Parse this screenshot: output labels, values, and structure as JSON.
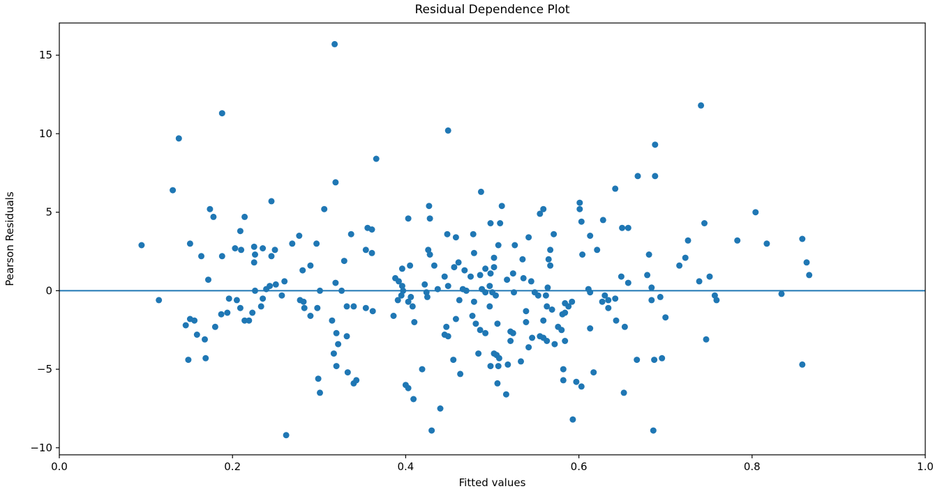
{
  "title": "Residual Dependence Plot",
  "chart_data": {
    "type": "scatter",
    "title": "Residual Dependence Plot",
    "xlabel": "Fitted values",
    "ylabel": "Pearson Residuals",
    "xlim": [
      0.0,
      1.0
    ],
    "ylim": [
      -10.45,
      17.05
    ],
    "xticks": [
      0.0,
      0.2,
      0.4,
      0.6,
      0.8,
      1.0
    ],
    "xtick_labels": [
      "0.0",
      "0.2",
      "0.4",
      "0.6",
      "0.8",
      "1.0"
    ],
    "yticks": [
      -10,
      -5,
      0,
      5,
      10,
      15
    ],
    "ytick_labels": [
      "−10",
      "−5",
      "0",
      "5",
      "10",
      "15"
    ],
    "grid": false,
    "legend": null,
    "background_color": "#ffffff",
    "spine_color": "#000000",
    "marker_color": "#1f77b4",
    "zero_line": {
      "y": 0,
      "color": "#1f77b4",
      "width": 2
    },
    "series": [
      {
        "name": "pearson-residuals",
        "points": [
          [
            0.318,
            15.7
          ],
          [
            0.188,
            11.3
          ],
          [
            0.138,
            9.7
          ],
          [
            0.131,
            6.4
          ],
          [
            0.319,
            6.9
          ],
          [
            0.245,
            5.7
          ],
          [
            0.174,
            5.2
          ],
          [
            0.178,
            4.7
          ],
          [
            0.214,
            4.7
          ],
          [
            0.209,
            3.8
          ],
          [
            0.277,
            3.5
          ],
          [
            0.306,
            5.2
          ],
          [
            0.449,
            10.2
          ],
          [
            0.366,
            8.4
          ],
          [
            0.487,
            6.3
          ],
          [
            0.642,
            6.5
          ],
          [
            0.668,
            7.3
          ],
          [
            0.427,
            5.4
          ],
          [
            0.511,
            5.4
          ],
          [
            0.555,
            4.9
          ],
          [
            0.559,
            5.2
          ],
          [
            0.601,
            5.6
          ],
          [
            0.601,
            5.2
          ],
          [
            0.403,
            4.6
          ],
          [
            0.428,
            4.6
          ],
          [
            0.498,
            4.3
          ],
          [
            0.509,
            4.3
          ],
          [
            0.603,
            4.4
          ],
          [
            0.628,
            4.5
          ],
          [
            0.356,
            4.0
          ],
          [
            0.361,
            3.9
          ],
          [
            0.337,
            3.6
          ],
          [
            0.448,
            3.6
          ],
          [
            0.458,
            3.4
          ],
          [
            0.478,
            3.6
          ],
          [
            0.542,
            3.4
          ],
          [
            0.571,
            3.6
          ],
          [
            0.613,
            3.5
          ],
          [
            0.65,
            4.0
          ],
          [
            0.657,
            4.0
          ],
          [
            0.741,
            11.8
          ],
          [
            0.688,
            9.3
          ],
          [
            0.688,
            7.3
          ],
          [
            0.804,
            5.0
          ],
          [
            0.745,
            4.3
          ],
          [
            0.726,
            3.2
          ],
          [
            0.783,
            3.2
          ],
          [
            0.858,
            3.3
          ],
          [
            0.095,
            2.9
          ],
          [
            0.151,
            3.0
          ],
          [
            0.164,
            2.2
          ],
          [
            0.188,
            2.2
          ],
          [
            0.203,
            2.7
          ],
          [
            0.21,
            2.6
          ],
          [
            0.225,
            2.8
          ],
          [
            0.226,
            2.3
          ],
          [
            0.235,
            2.7
          ],
          [
            0.245,
            2.2
          ],
          [
            0.249,
            2.6
          ],
          [
            0.225,
            1.8
          ],
          [
            0.269,
            3.0
          ],
          [
            0.297,
            3.0
          ],
          [
            0.281,
            1.3
          ],
          [
            0.29,
            1.6
          ],
          [
            0.172,
            0.7
          ],
          [
            0.319,
            0.5
          ],
          [
            0.329,
            1.9
          ],
          [
            0.226,
            0.0
          ],
          [
            0.239,
            0.1
          ],
          [
            0.243,
            0.3
          ],
          [
            0.25,
            0.4
          ],
          [
            0.301,
            0.0
          ],
          [
            0.326,
            0.0
          ],
          [
            0.115,
            -0.6
          ],
          [
            0.196,
            -0.5
          ],
          [
            0.205,
            -0.6
          ],
          [
            0.209,
            -1.1
          ],
          [
            0.214,
            -1.9
          ],
          [
            0.219,
            -1.9
          ],
          [
            0.223,
            -1.4
          ],
          [
            0.233,
            -1.0
          ],
          [
            0.235,
            -0.5
          ],
          [
            0.257,
            -0.3
          ],
          [
            0.26,
            0.6
          ],
          [
            0.278,
            -0.6
          ],
          [
            0.282,
            -0.7
          ],
          [
            0.283,
            -1.1
          ],
          [
            0.29,
            -1.6
          ],
          [
            0.298,
            -1.1
          ],
          [
            0.315,
            -1.9
          ],
          [
            0.32,
            -2.7
          ],
          [
            0.322,
            -3.4
          ],
          [
            0.317,
            -4.0
          ],
          [
            0.32,
            -4.8
          ],
          [
            0.333,
            -5.2
          ],
          [
            0.299,
            -5.6
          ],
          [
            0.301,
            -6.5
          ],
          [
            0.262,
            -9.2
          ],
          [
            0.149,
            -4.4
          ],
          [
            0.169,
            -4.3
          ],
          [
            0.146,
            -2.2
          ],
          [
            0.151,
            -1.8
          ],
          [
            0.156,
            -1.9
          ],
          [
            0.159,
            -2.8
          ],
          [
            0.168,
            -3.1
          ],
          [
            0.18,
            -2.3
          ],
          [
            0.187,
            -1.5
          ],
          [
            0.194,
            -1.4
          ],
          [
            0.354,
            2.6
          ],
          [
            0.361,
            2.4
          ],
          [
            0.426,
            2.6
          ],
          [
            0.428,
            2.3
          ],
          [
            0.479,
            2.4
          ],
          [
            0.502,
            2.1
          ],
          [
            0.507,
            2.9
          ],
          [
            0.526,
            2.9
          ],
          [
            0.535,
            2.0
          ],
          [
            0.567,
            2.6
          ],
          [
            0.565,
            2.0
          ],
          [
            0.567,
            1.6
          ],
          [
            0.604,
            2.3
          ],
          [
            0.621,
            2.6
          ],
          [
            0.396,
            1.4
          ],
          [
            0.405,
            1.6
          ],
          [
            0.433,
            1.6
          ],
          [
            0.456,
            1.5
          ],
          [
            0.461,
            1.8
          ],
          [
            0.445,
            0.9
          ],
          [
            0.468,
            1.3
          ],
          [
            0.475,
            0.9
          ],
          [
            0.486,
            1.0
          ],
          [
            0.492,
            1.4
          ],
          [
            0.498,
            1.1
          ],
          [
            0.497,
            0.3
          ],
          [
            0.502,
            1.5
          ],
          [
            0.517,
            0.7
          ],
          [
            0.524,
            1.1
          ],
          [
            0.536,
            0.8
          ],
          [
            0.545,
            0.6
          ],
          [
            0.564,
            0.2
          ],
          [
            0.388,
            0.8
          ],
          [
            0.392,
            0.6
          ],
          [
            0.396,
            0.3
          ],
          [
            0.397,
            0.0
          ],
          [
            0.395,
            -0.3
          ],
          [
            0.391,
            -0.6
          ],
          [
            0.403,
            -0.7
          ],
          [
            0.406,
            -0.4
          ],
          [
            0.408,
            -1.0
          ],
          [
            0.422,
            0.4
          ],
          [
            0.424,
            -0.1
          ],
          [
            0.425,
            -0.4
          ],
          [
            0.437,
            0.1
          ],
          [
            0.449,
            0.3
          ],
          [
            0.466,
            0.1
          ],
          [
            0.47,
            0.0
          ],
          [
            0.488,
            0.1
          ],
          [
            0.492,
            -0.1
          ],
          [
            0.5,
            -0.1
          ],
          [
            0.504,
            -0.3
          ],
          [
            0.525,
            -0.1
          ],
          [
            0.549,
            -0.1
          ],
          [
            0.553,
            -0.3
          ],
          [
            0.562,
            -0.3
          ],
          [
            0.611,
            0.1
          ],
          [
            0.613,
            -0.1
          ],
          [
            0.63,
            -0.3
          ],
          [
            0.462,
            -0.6
          ],
          [
            0.479,
            -0.7
          ],
          [
            0.497,
            -1.0
          ],
          [
            0.539,
            -1.3
          ],
          [
            0.563,
            -1.0
          ],
          [
            0.569,
            -1.2
          ],
          [
            0.584,
            -0.8
          ],
          [
            0.588,
            -1.0
          ],
          [
            0.592,
            -0.7
          ],
          [
            0.581,
            -1.5
          ],
          [
            0.584,
            -1.4
          ],
          [
            0.627,
            -0.7
          ],
          [
            0.634,
            -0.6
          ],
          [
            0.642,
            -0.5
          ],
          [
            0.649,
            0.9
          ],
          [
            0.657,
            0.5
          ],
          [
            0.354,
            -1.1
          ],
          [
            0.362,
            -1.3
          ],
          [
            0.34,
            -1.0
          ],
          [
            0.332,
            -1.0
          ],
          [
            0.386,
            -1.6
          ],
          [
            0.41,
            -2.0
          ],
          [
            0.447,
            -2.3
          ],
          [
            0.445,
            -2.8
          ],
          [
            0.449,
            -2.9
          ],
          [
            0.458,
            -1.8
          ],
          [
            0.477,
            -1.6
          ],
          [
            0.481,
            -2.1
          ],
          [
            0.486,
            -2.5
          ],
          [
            0.492,
            -2.7
          ],
          [
            0.506,
            -2.1
          ],
          [
            0.521,
            -2.6
          ],
          [
            0.524,
            -2.7
          ],
          [
            0.521,
            -3.2
          ],
          [
            0.539,
            -2.0
          ],
          [
            0.542,
            -3.6
          ],
          [
            0.546,
            -3.0
          ],
          [
            0.555,
            -2.9
          ],
          [
            0.559,
            -3.0
          ],
          [
            0.563,
            -3.2
          ],
          [
            0.572,
            -3.4
          ],
          [
            0.584,
            -3.2
          ],
          [
            0.559,
            -1.9
          ],
          [
            0.576,
            -2.3
          ],
          [
            0.58,
            -2.5
          ],
          [
            0.613,
            -2.4
          ],
          [
            0.634,
            -1.1
          ],
          [
            0.643,
            -1.9
          ],
          [
            0.653,
            -2.3
          ],
          [
            0.667,
            -4.4
          ],
          [
            0.502,
            -4.0
          ],
          [
            0.505,
            -4.1
          ],
          [
            0.508,
            -4.3
          ],
          [
            0.498,
            -4.8
          ],
          [
            0.507,
            -4.8
          ],
          [
            0.518,
            -4.7
          ],
          [
            0.533,
            -4.5
          ],
          [
            0.484,
            -4.0
          ],
          [
            0.455,
            -4.4
          ],
          [
            0.463,
            -5.3
          ],
          [
            0.506,
            -5.9
          ],
          [
            0.516,
            -6.6
          ],
          [
            0.4,
            -6.0
          ],
          [
            0.403,
            -6.2
          ],
          [
            0.409,
            -6.9
          ],
          [
            0.419,
            -5.0
          ],
          [
            0.44,
            -7.5
          ],
          [
            0.43,
            -8.9
          ],
          [
            0.582,
            -5.0
          ],
          [
            0.582,
            -5.7
          ],
          [
            0.597,
            -5.8
          ],
          [
            0.603,
            -6.1
          ],
          [
            0.617,
            -5.2
          ],
          [
            0.593,
            -8.2
          ],
          [
            0.652,
            -6.5
          ],
          [
            0.34,
            -5.9
          ],
          [
            0.343,
            -5.7
          ],
          [
            0.332,
            -2.9
          ],
          [
            0.817,
            3.0
          ],
          [
            0.681,
            2.3
          ],
          [
            0.723,
            2.1
          ],
          [
            0.716,
            1.6
          ],
          [
            0.863,
            1.8
          ],
          [
            0.679,
            1.0
          ],
          [
            0.739,
            0.6
          ],
          [
            0.751,
            0.9
          ],
          [
            0.866,
            1.0
          ],
          [
            0.684,
            0.2
          ],
          [
            0.684,
            -0.6
          ],
          [
            0.694,
            -0.4
          ],
          [
            0.757,
            -0.3
          ],
          [
            0.759,
            -0.6
          ],
          [
            0.834,
            -0.2
          ],
          [
            0.7,
            -1.7
          ],
          [
            0.747,
            -3.1
          ],
          [
            0.687,
            -4.4
          ],
          [
            0.696,
            -4.3
          ],
          [
            0.858,
            -4.7
          ],
          [
            0.686,
            -8.9
          ]
        ]
      }
    ]
  }
}
